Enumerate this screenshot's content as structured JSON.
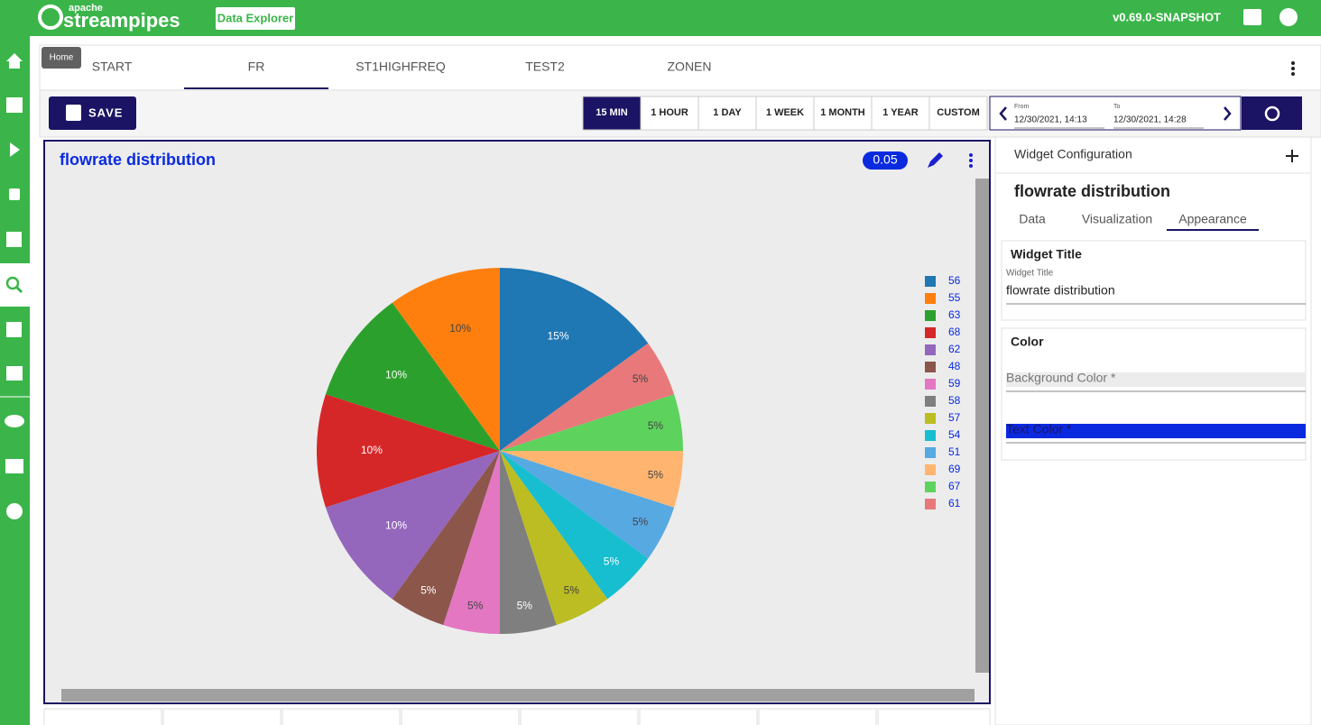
{
  "header": {
    "logo_small": "apache",
    "logo": "streampipes",
    "app": "Data Explorer",
    "version": "v0.69.0-SNAPSHOT"
  },
  "tooltip": "Home",
  "tabs": [
    "START",
    "FR",
    "ST1HIGHFREQ",
    "TEST2",
    "ZONEN"
  ],
  "toolbar": {
    "save": "SAVE",
    "ranges": [
      "15 MIN",
      "1 HOUR",
      "1 DAY",
      "1 WEEK",
      "1 MONTH",
      "1 YEAR",
      "CUSTOM"
    ],
    "from_label": "From",
    "from": "12/30/2021, 14:13",
    "to_label": "To",
    "to": "12/30/2021, 14:28"
  },
  "widget": {
    "title": "flowrate distribution",
    "badge": "0.05"
  },
  "chart_data": {
    "type": "pie",
    "categories": [
      "56",
      "55",
      "63",
      "68",
      "62",
      "48",
      "59",
      "58",
      "57",
      "54",
      "51",
      "69",
      "67",
      "61"
    ],
    "values": [
      15,
      10,
      10,
      10,
      10,
      5,
      5,
      5,
      5,
      5,
      5,
      5,
      5,
      5
    ],
    "value_labels": [
      "15%",
      "10%",
      "10%",
      "10%",
      "10%",
      "5%",
      "5%",
      "5%",
      "5%",
      "5%",
      "5%",
      "5%",
      "5%",
      "5%"
    ],
    "colors": [
      "#1f77b4",
      "#ff7f0e",
      "#2ca02c",
      "#d62728",
      "#9467bd",
      "#8c564b",
      "#e377c2",
      "#7f7f7f",
      "#bcbd22",
      "#17becf",
      "#57a9e2",
      "#ffb570",
      "#5dd35d",
      "#e8787a"
    ],
    "legend": "right"
  },
  "config": {
    "heading": "Widget Configuration",
    "title": "flowrate distribution",
    "tabs": [
      "Data",
      "Visualization",
      "Appearance"
    ],
    "title_section": "Widget Title",
    "title_field_label": "Widget Title",
    "title_field_value": "flowrate distribution",
    "color_section": "Color",
    "background_color": "Background Color *",
    "text_color": "Text Color *"
  }
}
